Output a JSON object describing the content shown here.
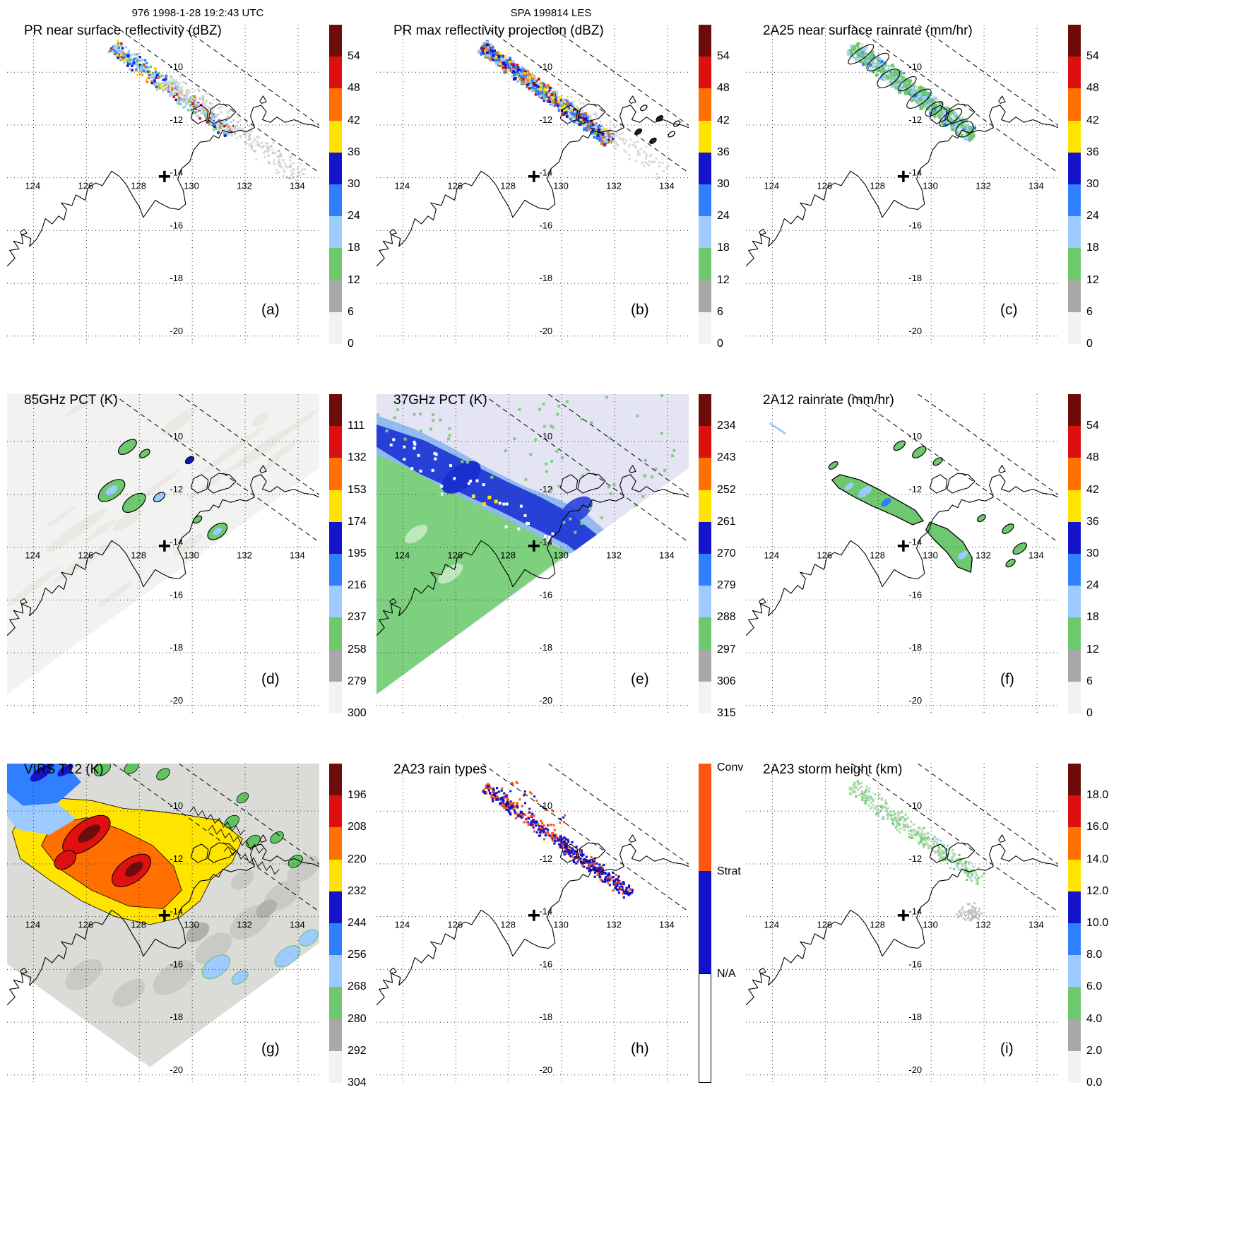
{
  "header": {
    "left": "976 1998-1-28 19:2:43 UTC",
    "center": "SPA 199814 LES"
  },
  "palette": {
    "maroon": "#6e0b0b",
    "red": "#dd1010",
    "orange": "#ff7000",
    "yellow": "#ffe400",
    "blue3": "#1414cc",
    "blue2": "#2f7fff",
    "blue1": "#9ecbff",
    "green": "#6ec96e",
    "gray": "#a8a8a8",
    "white": "#f2f2f2"
  },
  "colorbar_colors": [
    "#6e0b0b",
    "#dd1010",
    "#ff7000",
    "#ffe400",
    "#1414cc",
    "#2f7fff",
    "#9ecbff",
    "#6ec96e",
    "#a8a8a8",
    "#f2f2f2"
  ],
  "scales": {
    "dbz": {
      "ticks": [
        "54",
        "48",
        "42",
        "36",
        "30",
        "24",
        "18",
        "12",
        "6",
        "0"
      ]
    },
    "rain": {
      "ticks": [
        "54",
        "48",
        "42",
        "36",
        "30",
        "24",
        "18",
        "12",
        "6",
        "0"
      ]
    },
    "pct85": {
      "ticks": [
        "111",
        "132",
        "153",
        "174",
        "195",
        "216",
        "237",
        "258",
        "279",
        "300"
      ]
    },
    "pct37": {
      "ticks": [
        "234",
        "243",
        "252",
        "261",
        "270",
        "279",
        "288",
        "297",
        "306",
        "315"
      ]
    },
    "virs": {
      "ticks": [
        "196",
        "208",
        "220",
        "232",
        "244",
        "256",
        "268",
        "280",
        "292",
        "304"
      ]
    },
    "height": {
      "ticks": [
        "18.0",
        "16.0",
        "14.0",
        "12.0",
        "10.0",
        "8.0",
        "6.0",
        "4.0",
        "2.0",
        "0.0"
      ]
    },
    "raintype": {
      "segments": [
        {
          "color": "#ff5511",
          "frac": 0.336
        },
        {
          "color": "#1212cc",
          "frac": 0.321
        },
        {
          "color": "#ffffff",
          "frac": 0.343
        }
      ],
      "labels": [
        {
          "text": "Conv",
          "frac": 0.0
        },
        {
          "text": "Strat",
          "frac": 0.336
        },
        {
          "text": "N/A",
          "frac": 0.657
        }
      ]
    }
  },
  "map": {
    "lon_range": [
      123.0,
      134.8
    ],
    "lat_range": [
      -20.3,
      -8.2
    ],
    "lon_ticks": [
      "124",
      "126",
      "128",
      "130",
      "132",
      "134"
    ],
    "lat_ticks": [
      "-10",
      "-12",
      "-14",
      "-16",
      "-18",
      "-20"
    ],
    "cross": [
      128.95,
      -13.95
    ],
    "swath_dashed": [
      [
        [
          127.0,
          -8.2
        ],
        [
          135.2,
          -14.1
        ]
      ],
      [
        [
          129.5,
          -8.2
        ],
        [
          135.2,
          -12.3
        ]
      ]
    ],
    "tmi_swath": [
      [
        123,
        -8.2
      ],
      [
        134.8,
        -8.2
      ],
      [
        134.8,
        -11.0
      ],
      [
        123,
        -19.58
      ]
    ],
    "virs_swath": [
      [
        123,
        -8.2
      ],
      [
        134.8,
        -8.2
      ],
      [
        134.8,
        -15.0
      ],
      [
        128.4,
        -19.7
      ],
      [
        123,
        -15.8
      ]
    ],
    "coastlines": [
      [
        [
          123.0,
          -17.35
        ],
        [
          123.3,
          -17.05
        ],
        [
          123.1,
          -16.75
        ],
        [
          123.45,
          -16.7
        ],
        [
          123.25,
          -16.4
        ],
        [
          123.6,
          -16.5
        ],
        [
          123.55,
          -16.15
        ],
        [
          123.9,
          -16.3
        ],
        [
          123.85,
          -16.6
        ],
        [
          124.1,
          -16.35
        ],
        [
          124.3,
          -16.0
        ],
        [
          124.45,
          -15.55
        ],
        [
          124.7,
          -15.75
        ],
        [
          124.95,
          -15.45
        ],
        [
          125.15,
          -15.6
        ],
        [
          125.25,
          -15.2
        ],
        [
          125.05,
          -14.95
        ],
        [
          125.45,
          -15.05
        ],
        [
          125.6,
          -14.65
        ],
        [
          125.95,
          -14.85
        ],
        [
          126.05,
          -14.4
        ],
        [
          126.35,
          -14.2
        ],
        [
          126.6,
          -14.3
        ],
        [
          126.95,
          -13.75
        ],
        [
          127.25,
          -13.95
        ],
        [
          127.5,
          -14.25
        ],
        [
          127.75,
          -14.7
        ],
        [
          128.0,
          -15.1
        ],
        [
          128.15,
          -15.5
        ],
        [
          128.4,
          -15.15
        ],
        [
          128.6,
          -14.85
        ],
        [
          128.85,
          -15.0
        ],
        [
          129.15,
          -15.15
        ],
        [
          129.5,
          -15.2
        ],
        [
          129.75,
          -15.0
        ],
        [
          129.65,
          -14.45
        ],
        [
          129.45,
          -14.05
        ],
        [
          129.6,
          -13.65
        ],
        [
          129.9,
          -13.4
        ],
        [
          130.05,
          -12.95
        ],
        [
          130.3,
          -12.65
        ],
        [
          130.65,
          -12.6
        ],
        [
          130.8,
          -12.4
        ],
        [
          131.0,
          -12.5
        ],
        [
          131.15,
          -12.2
        ],
        [
          131.45,
          -12.3
        ],
        [
          131.8,
          -12.2
        ],
        [
          132.05,
          -12.25
        ],
        [
          132.35,
          -12.1
        ],
        [
          132.2,
          -11.65
        ],
        [
          132.3,
          -11.35
        ],
        [
          132.6,
          -11.25
        ],
        [
          132.8,
          -11.5
        ],
        [
          132.65,
          -11.8
        ],
        [
          132.95,
          -11.9
        ],
        [
          133.2,
          -11.7
        ],
        [
          133.5,
          -11.9
        ],
        [
          133.85,
          -11.8
        ],
        [
          134.2,
          -11.95
        ],
        [
          134.55,
          -12.0
        ],
        [
          134.8,
          -12.1
        ]
      ],
      [
        [
          129.95,
          -11.75
        ],
        [
          130.05,
          -11.4
        ],
        [
          130.35,
          -11.25
        ],
        [
          130.6,
          -11.45
        ],
        [
          130.55,
          -11.8
        ],
        [
          130.2,
          -11.95
        ],
        [
          129.95,
          -11.75
        ]
      ],
      [
        [
          130.6,
          -11.8
        ],
        [
          130.7,
          -11.4
        ],
        [
          131.0,
          -11.2
        ],
        [
          131.4,
          -11.25
        ],
        [
          131.65,
          -11.5
        ],
        [
          131.4,
          -11.75
        ],
        [
          131.05,
          -11.85
        ],
        [
          130.8,
          -11.95
        ],
        [
          130.6,
          -11.8
        ]
      ],
      [
        [
          123.5,
          -16.05
        ],
        [
          123.65,
          -15.95
        ],
        [
          123.75,
          -16.1
        ],
        [
          123.55,
          -16.15
        ],
        [
          123.5,
          -16.05
        ]
      ],
      [
        [
          132.55,
          -11.1
        ],
        [
          132.68,
          -10.9
        ],
        [
          132.8,
          -11.12
        ],
        [
          132.62,
          -11.18
        ],
        [
          132.55,
          -11.1
        ]
      ]
    ]
  },
  "chart_data": [
    {
      "type": "heatmap",
      "panel_label": "(a)",
      "title": "PR near surface reflectivity (dBZ)",
      "units": "dBZ",
      "scale": "dbz",
      "overlay": "pr_nsr"
    },
    {
      "type": "heatmap",
      "panel_label": "(b)",
      "title": "PR max reflectivity projection (dBZ)",
      "units": "dBZ",
      "scale": "dbz",
      "overlay": "pr_max"
    },
    {
      "type": "heatmap",
      "panel_label": "(c)",
      "title": "2A25 near surface rainrate (mm/hr)",
      "units": "mm/hr",
      "scale": "rain",
      "overlay": "rr2a25"
    },
    {
      "type": "heatmap",
      "panel_label": "(d)",
      "title": "85GHz PCT (K)",
      "units": "K",
      "scale": "pct85",
      "overlay": "pct85"
    },
    {
      "type": "heatmap",
      "panel_label": "(e)",
      "title": "37GHz PCT (K)",
      "units": "K",
      "scale": "pct37",
      "overlay": "pct37"
    },
    {
      "type": "heatmap",
      "panel_label": "(f)",
      "title": "2A12 rainrate (mm/hr)",
      "units": "mm/hr",
      "scale": "rain",
      "overlay": "rr2a12"
    },
    {
      "type": "heatmap",
      "panel_label": "(g)",
      "title": "VIRS T12 (K)",
      "units": "K",
      "scale": "virs",
      "overlay": "virs"
    },
    {
      "type": "heatmap",
      "panel_label": "(h)",
      "title": "2A23 rain types",
      "units": "",
      "scale": "raintype",
      "overlay": "raintypes"
    },
    {
      "type": "heatmap",
      "panel_label": "(i)",
      "title": "2A23 storm height (km)",
      "units": "km",
      "scale": "height",
      "overlay": "height"
    }
  ]
}
